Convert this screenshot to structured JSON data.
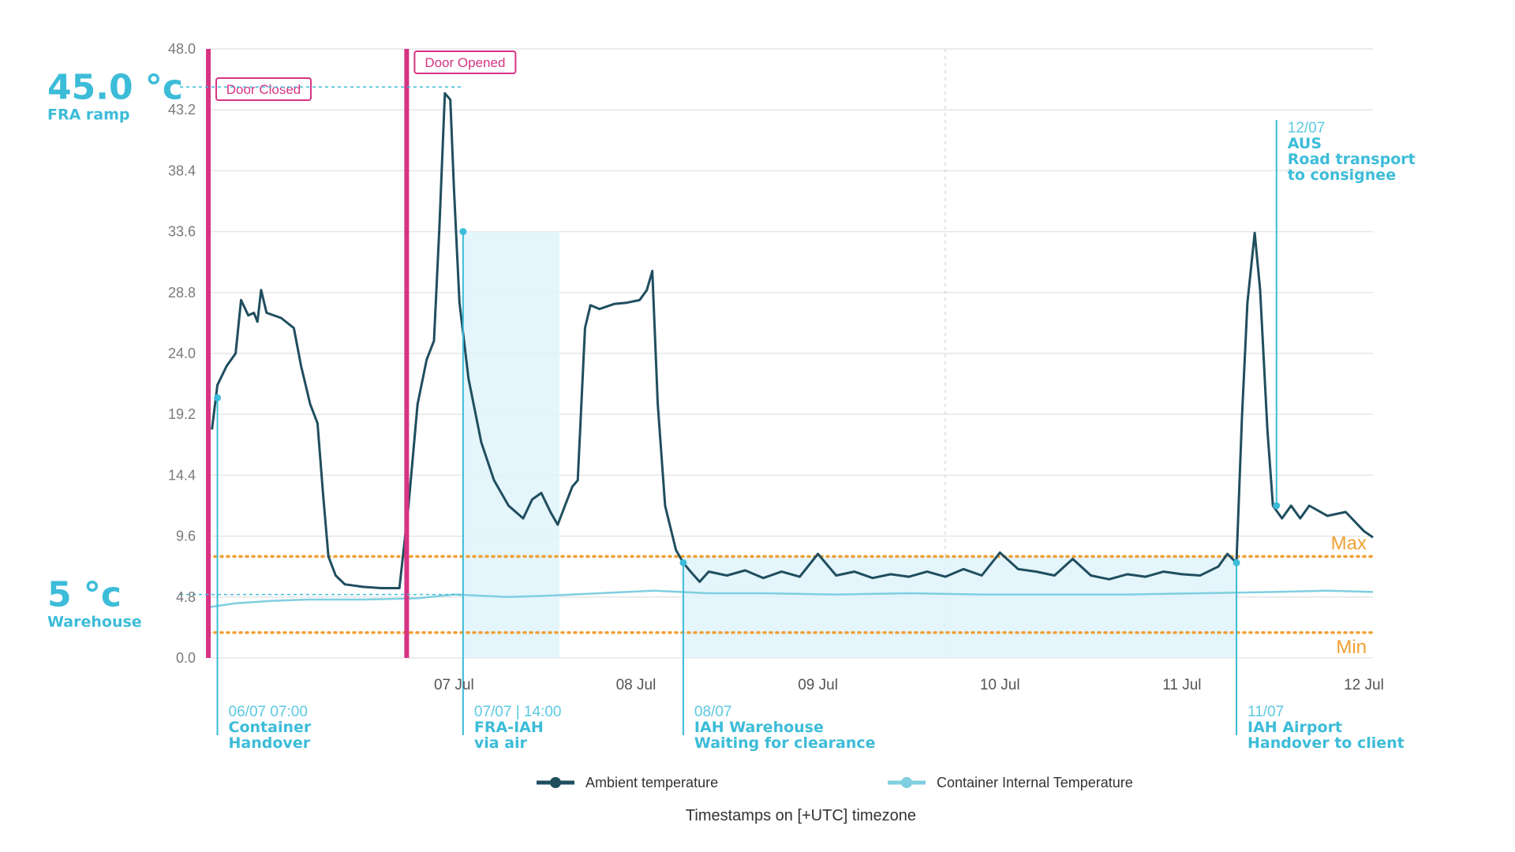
{
  "chart_data": {
    "type": "line",
    "x_axis": {
      "ticks": [
        "07 Jul",
        "08 Jul",
        "09 Jul",
        "10 Jul",
        "11 Jul",
        "12 Jul"
      ],
      "range_days": [
        6.15,
        12.55
      ]
    },
    "y_axis": {
      "ticks": [
        "0.0",
        "4.8",
        "9.6",
        "14.4",
        "19.2",
        "24.0",
        "28.8",
        "33.6",
        "38.4",
        "43.2",
        "48.0"
      ],
      "ylim": [
        0,
        48
      ]
    },
    "grid": "horizontal",
    "colors": {
      "ambient": "#1f4e5f",
      "internal": "#7fcfe0",
      "door": "#d63384",
      "limit": "#f0a033",
      "annotation": "#3cbcd8",
      "shade": "#dff3fa"
    },
    "series": [
      {
        "name": "Ambient temperature",
        "points": [
          [
            6.17,
            18
          ],
          [
            6.2,
            21.5
          ],
          [
            6.25,
            23
          ],
          [
            6.3,
            24
          ],
          [
            6.33,
            28.2
          ],
          [
            6.37,
            27
          ],
          [
            6.4,
            27.2
          ],
          [
            6.42,
            26.5
          ],
          [
            6.44,
            29
          ],
          [
            6.47,
            27.2
          ],
          [
            6.55,
            26.8
          ],
          [
            6.62,
            26
          ],
          [
            6.66,
            23
          ],
          [
            6.71,
            20
          ],
          [
            6.75,
            18.5
          ],
          [
            6.78,
            13
          ],
          [
            6.81,
            8
          ],
          [
            6.85,
            6.5
          ],
          [
            6.9,
            5.8
          ],
          [
            7,
            5.6
          ],
          [
            7.1,
            5.5
          ],
          [
            7.2,
            5.5
          ],
          [
            7.25,
            12
          ],
          [
            7.3,
            20
          ],
          [
            7.35,
            23.5
          ],
          [
            7.39,
            25
          ],
          [
            7.42,
            34
          ],
          [
            7.45,
            44.5
          ],
          [
            7.48,
            44
          ],
          [
            7.5,
            37
          ],
          [
            7.53,
            28
          ],
          [
            7.58,
            22
          ],
          [
            7.65,
            17
          ],
          [
            7.72,
            14
          ],
          [
            7.8,
            12
          ],
          [
            7.88,
            11
          ],
          [
            7.93,
            12.5
          ],
          [
            7.98,
            13
          ],
          [
            8.03,
            11.5
          ],
          [
            8.07,
            10.5
          ],
          [
            8.11,
            12
          ],
          [
            8.15,
            13.5
          ],
          [
            8.18,
            14
          ],
          [
            8.22,
            26
          ],
          [
            8.25,
            27.8
          ],
          [
            8.3,
            27.5
          ],
          [
            8.38,
            27.9
          ],
          [
            8.45,
            28
          ],
          [
            8.52,
            28.2
          ],
          [
            8.56,
            29
          ],
          [
            8.59,
            30.5
          ],
          [
            8.62,
            20
          ],
          [
            8.66,
            12
          ],
          [
            8.72,
            8.5
          ],
          [
            8.76,
            7.5
          ],
          [
            8.8,
            6.8
          ],
          [
            8.85,
            6
          ],
          [
            8.9,
            6.8
          ],
          [
            9.0,
            6.5
          ],
          [
            9.1,
            6.9
          ],
          [
            9.2,
            6.3
          ],
          [
            9.3,
            6.8
          ],
          [
            9.4,
            6.4
          ],
          [
            9.5,
            8.2
          ],
          [
            9.6,
            6.5
          ],
          [
            9.7,
            6.8
          ],
          [
            9.8,
            6.3
          ],
          [
            9.9,
            6.6
          ],
          [
            10.0,
            6.4
          ],
          [
            10.1,
            6.8
          ],
          [
            10.2,
            6.4
          ],
          [
            10.3,
            7.0
          ],
          [
            10.4,
            6.5
          ],
          [
            10.5,
            8.3
          ],
          [
            10.6,
            7.0
          ],
          [
            10.7,
            6.8
          ],
          [
            10.8,
            6.5
          ],
          [
            10.9,
            7.8
          ],
          [
            11.0,
            6.5
          ],
          [
            11.1,
            6.2
          ],
          [
            11.2,
            6.6
          ],
          [
            11.3,
            6.4
          ],
          [
            11.4,
            6.8
          ],
          [
            11.5,
            6.6
          ],
          [
            11.6,
            6.5
          ],
          [
            11.7,
            7.2
          ],
          [
            11.75,
            8.2
          ],
          [
            11.8,
            7.5
          ],
          [
            11.83,
            19
          ],
          [
            11.86,
            28
          ],
          [
            11.9,
            33.5
          ],
          [
            11.93,
            29
          ],
          [
            11.97,
            18
          ],
          [
            12.0,
            12
          ],
          [
            12.05,
            11
          ],
          [
            12.1,
            12
          ],
          [
            12.15,
            11
          ],
          [
            12.2,
            12
          ],
          [
            12.3,
            11.2
          ],
          [
            12.4,
            11.5
          ],
          [
            12.5,
            10
          ],
          [
            12.55,
            9.5
          ]
        ]
      },
      {
        "name": "Container Internal Temperature",
        "points": [
          [
            6.15,
            4.0
          ],
          [
            6.3,
            4.3
          ],
          [
            6.5,
            4.5
          ],
          [
            6.7,
            4.6
          ],
          [
            7.0,
            4.6
          ],
          [
            7.3,
            4.7
          ],
          [
            7.5,
            5.0
          ],
          [
            7.8,
            4.8
          ],
          [
            8.0,
            4.9
          ],
          [
            8.3,
            5.1
          ],
          [
            8.6,
            5.3
          ],
          [
            8.9,
            5.1
          ],
          [
            9.2,
            5.1
          ],
          [
            9.6,
            5.0
          ],
          [
            10.0,
            5.1
          ],
          [
            10.4,
            5.0
          ],
          [
            10.8,
            5.0
          ],
          [
            11.2,
            5.0
          ],
          [
            11.6,
            5.1
          ],
          [
            12.0,
            5.2
          ],
          [
            12.3,
            5.3
          ],
          [
            12.55,
            5.2
          ]
        ]
      }
    ],
    "limits": {
      "max": 8,
      "min": 2,
      "max_label": "Max",
      "min_label": "Min"
    },
    "door_events": [
      {
        "day": 6.15,
        "label": "Door Closed"
      },
      {
        "day": 7.24,
        "label": "Door Opened"
      }
    ],
    "reference_markers": [
      {
        "value": "45.0 °c",
        "label": "FRA ramp",
        "y": 45
      },
      {
        "value": "5 °c",
        "label": "Warehouse",
        "y": 5
      }
    ],
    "shaded_regions": [
      {
        "from_day": 7.55,
        "to_day": 8.08,
        "top": 33.6
      },
      {
        "from_day": 8.76,
        "to_day": 11.8,
        "top": 8
      }
    ],
    "annotations": [
      {
        "day": 6.2,
        "anchor_y": 20.5,
        "date": "06/07 07:00",
        "line1": "Container",
        "line2": "Handover",
        "line3": "",
        "position": "below"
      },
      {
        "day": 7.55,
        "anchor_y": 33.6,
        "date": "07/07  | 14:00",
        "line1": "FRA-IAH",
        "line2": "via air",
        "line3": "",
        "position": "below"
      },
      {
        "day": 8.76,
        "anchor_y": 7.5,
        "date": "08/07",
        "line1": "IAH Warehouse",
        "line2": "Waiting for clearance",
        "line3": "",
        "position": "below"
      },
      {
        "day": 11.8,
        "anchor_y": 7.5,
        "date": "11/07",
        "line1": "IAH Airport",
        "line2": "Handover to client",
        "line3": "",
        "position": "below"
      },
      {
        "day": 12.02,
        "anchor_y": 12,
        "date": "12/07",
        "line1": "AUS",
        "line2": "Road transport",
        "line3": "to consignee",
        "position": "above"
      }
    ],
    "legend": [
      {
        "label": "Ambient temperature",
        "color": "#1f4e5f"
      },
      {
        "label": "Container Internal Temperature",
        "color": "#7fcfe0"
      }
    ],
    "footer": "Timestamps on [+UTC] timezone"
  }
}
